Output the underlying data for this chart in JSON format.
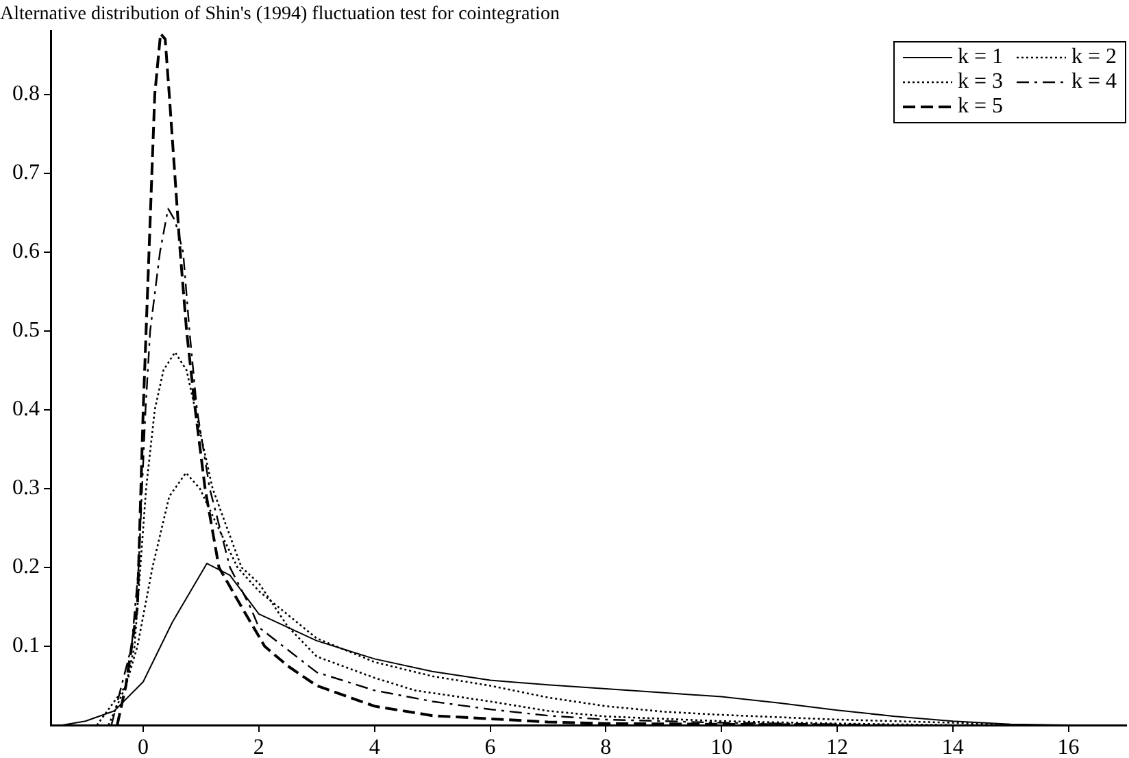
{
  "chart_data": {
    "type": "line",
    "title": "Alternative distribution of Shin's (1994) fluctuation test for cointegration",
    "xlim": [
      -1.6,
      17
    ],
    "xticks": [
      0,
      2,
      4,
      6,
      8,
      10,
      12,
      14,
      16
    ],
    "ylim": [
      0,
      0.88
    ],
    "yticks": [
      0.1,
      0.2,
      0.3,
      0.4,
      0.5,
      0.6,
      0.7,
      0.8
    ],
    "grid": false,
    "legend": "top right",
    "marker": "none",
    "series": [
      {
        "name": "k = 1",
        "color": "#000000",
        "line_style": "solid",
        "x": [
          -1.4,
          -1,
          -0.5,
          0,
          0.5,
          1.1,
          1.5,
          2,
          3,
          4,
          5,
          6,
          7,
          8,
          9,
          10,
          11,
          12,
          13,
          14,
          15,
          16
        ],
        "values": [
          0,
          0.005,
          0.018,
          0.055,
          0.13,
          0.205,
          0.19,
          0.141,
          0.107,
          0.084,
          0.068,
          0.057,
          0.051,
          0.046,
          0.041,
          0.036,
          0.028,
          0.019,
          0.011,
          0.005,
          0.001,
          0
        ]
      },
      {
        "name": "k = 2",
        "color": "#000000",
        "line_style": "dotted",
        "x": [
          -0.8,
          -0.3,
          -0.1,
          0.16,
          0.45,
          0.74,
          0.98,
          1.3,
          1.63,
          2,
          3,
          4,
          5,
          6,
          7,
          8,
          9,
          10,
          12,
          14,
          15
        ],
        "values": [
          0,
          0.05,
          0.1,
          0.2,
          0.29,
          0.32,
          0.3,
          0.25,
          0.2,
          0.17,
          0.11,
          0.08,
          0.062,
          0.05,
          0.035,
          0.024,
          0.017,
          0.013,
          0.007,
          0.003,
          0
        ]
      },
      {
        "name": "k = 3",
        "color": "#000000",
        "line_style": "dotted",
        "x": [
          -0.6,
          -0.3,
          -0.15,
          -0.05,
          0.05,
          0.2,
          0.35,
          0.55,
          0.75,
          0.9,
          1.2,
          1.7,
          2,
          2.5,
          3,
          4,
          4.7,
          6,
          7,
          8,
          10,
          12,
          14
        ],
        "values": [
          0,
          0.05,
          0.1,
          0.2,
          0.3,
          0.4,
          0.45,
          0.473,
          0.45,
          0.4,
          0.3,
          0.2,
          0.18,
          0.125,
          0.087,
          0.06,
          0.044,
          0.03,
          0.018,
          0.011,
          0.005,
          0.002,
          0
        ]
      },
      {
        "name": "k = 4",
        "color": "#000000",
        "line_style": "dashdot",
        "x": [
          -0.55,
          -0.2,
          -0.08,
          0.04,
          0.12,
          0.29,
          0.43,
          0.55,
          0.69,
          0.8,
          0.93,
          1.15,
          1.5,
          1.85,
          2,
          3,
          4,
          5,
          6,
          7,
          8,
          10,
          12,
          13
        ],
        "values": [
          0,
          0.1,
          0.2,
          0.4,
          0.5,
          0.6,
          0.655,
          0.64,
          0.6,
          0.5,
          0.4,
          0.3,
          0.2,
          0.15,
          0.124,
          0.067,
          0.044,
          0.03,
          0.02,
          0.012,
          0.007,
          0.003,
          0.001,
          0
        ]
      },
      {
        "name": "k = 5",
        "color": "#000000",
        "line_style": "dashed",
        "x": [
          -0.45,
          -0.3,
          -0.1,
          0,
          0.1,
          0.2,
          0.3,
          0.38,
          0.45,
          0.64,
          0.75,
          0.9,
          1.07,
          1.31,
          1.7,
          2.1,
          2.5,
          3,
          4,
          5,
          6,
          7,
          8,
          10,
          12
        ],
        "values": [
          0,
          0.05,
          0.15,
          0.4,
          0.6,
          0.8,
          0.877,
          0.87,
          0.8,
          0.6,
          0.5,
          0.4,
          0.3,
          0.2,
          0.15,
          0.1,
          0.075,
          0.05,
          0.024,
          0.012,
          0.008,
          0.004,
          0.002,
          0.001,
          0
        ]
      }
    ]
  }
}
